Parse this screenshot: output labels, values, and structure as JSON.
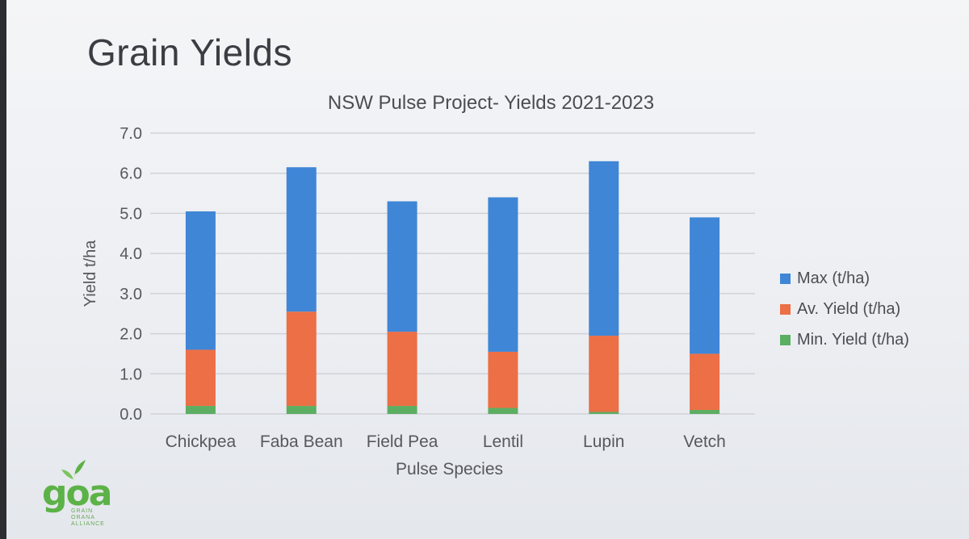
{
  "slide": {
    "title": "Grain Yields"
  },
  "logo": {
    "word": "goa",
    "sub_lines": [
      "GRAIN",
      "ORANA",
      "ALLIANCE"
    ]
  },
  "chart_data": {
    "type": "bar",
    "stacked": true,
    "title": "NSW Pulse Project- Yields 2021-2023",
    "xlabel": "Pulse Species",
    "ylabel": "Yield t/ha",
    "ylim": [
      0,
      7
    ],
    "yticks": [
      "0.0",
      "1.0",
      "2.0",
      "3.0",
      "4.0",
      "5.0",
      "6.0",
      "7.0"
    ],
    "grid": true,
    "legend_position": "right",
    "categories": [
      "Chickpea",
      "Faba Bean",
      "Field Pea",
      "Lentil",
      "Lupin",
      "Vetch"
    ],
    "series": [
      {
        "name": "Min. Yield (t/ha)",
        "color": "#5cae62",
        "values": [
          0.2,
          0.2,
          0.2,
          0.15,
          0.05,
          0.1
        ]
      },
      {
        "name": "Av. Yield (t/ha)",
        "color": "#ec6f45",
        "values": [
          1.4,
          2.35,
          1.85,
          1.4,
          1.9,
          1.4
        ]
      },
      {
        "name": "Max (t/ha)",
        "color": "#3f86d6",
        "values": [
          3.45,
          3.6,
          3.25,
          3.85,
          4.35,
          3.4
        ]
      }
    ],
    "legend_order": [
      "Max (t/ha)",
      "Av. Yield (t/ha)",
      "Min. Yield (t/ha)"
    ]
  }
}
